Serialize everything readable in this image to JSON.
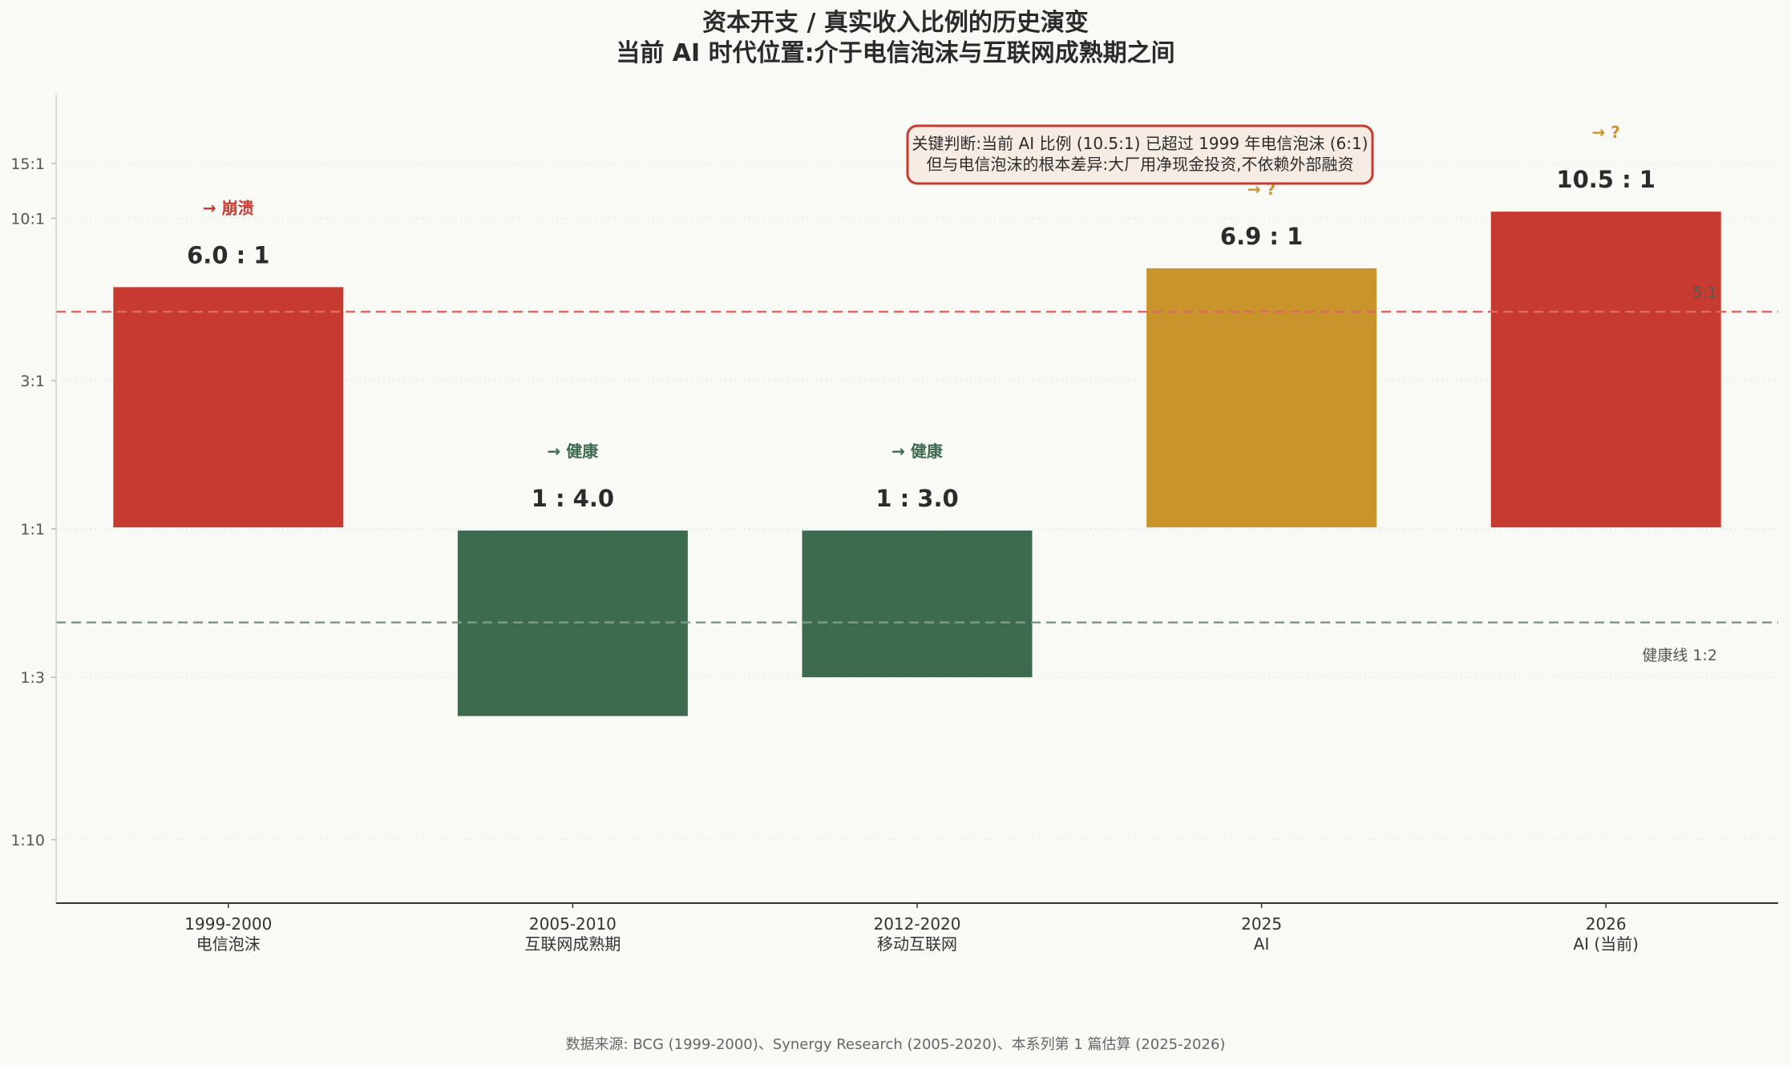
{
  "chart_data": {
    "type": "bar",
    "title": "资本开支 / 真实收入比例的历史演变",
    "subtitle": "当前 AI 时代位置:介于电信泡沫与互联网成熟期之间",
    "scale": "log",
    "baseline": 1,
    "ylim": [
      0.0625,
      25
    ],
    "yticks": [
      {
        "value": 15,
        "label": "15:1"
      },
      {
        "value": 10,
        "label": "10:1"
      },
      {
        "value": 3,
        "label": "3:1"
      },
      {
        "value": 1,
        "label": "1:1"
      },
      {
        "value": 0.3333,
        "label": "1:3"
      },
      {
        "value": 0.1,
        "label": "1:10"
      }
    ],
    "grid": true,
    "categories": [
      {
        "period": "1999-2000",
        "name": "电信泡沫"
      },
      {
        "period": "2005-2010",
        "name": "互联网成熟期"
      },
      {
        "period": "2012-2020",
        "name": "移动互联网"
      },
      {
        "period": "2025",
        "name": "AI"
      },
      {
        "period": "2026",
        "name": "AI (当前)"
      }
    ],
    "values": [
      6.0,
      0.25,
      0.3333,
      6.9,
      10.5
    ],
    "value_labels": [
      "6.0 : 1",
      "1 : 4.0",
      "1 : 3.0",
      "6.9 : 1",
      "10.5 : 1"
    ],
    "outcomes": [
      "→ 崩溃",
      "→ 健康",
      "→ 健康",
      "→ ?",
      "→ ?"
    ],
    "bar_colors": [
      "#c73a30",
      "#3d6b4f",
      "#3d6b4f",
      "#c9942c",
      "#c73a30"
    ],
    "outcome_colors": [
      "#c73a30",
      "#3d6b4f",
      "#3d6b4f",
      "#c9942c",
      "#c9942c"
    ],
    "reference_lines": [
      {
        "value": 5,
        "label": "5:1",
        "color": "#e06a63"
      },
      {
        "value": 0.5,
        "label": "健康线 1:2",
        "color": "#7d9a86"
      }
    ],
    "annotation": {
      "lines": [
        "关键判断:当前 AI 比例 (10.5:1) 已超过 1999 年电信泡沫 (6:1)",
        "但与电信泡沫的根本差异:大厂用净现金投资,不依赖外部融资"
      ],
      "border_color": "#c73a30",
      "fill_color": "#f7ece4"
    },
    "source": "数据来源: BCG (1999-2000)、Synergy Research (2005-2020)、本系列第 1 篇估算 (2025-2026)"
  }
}
